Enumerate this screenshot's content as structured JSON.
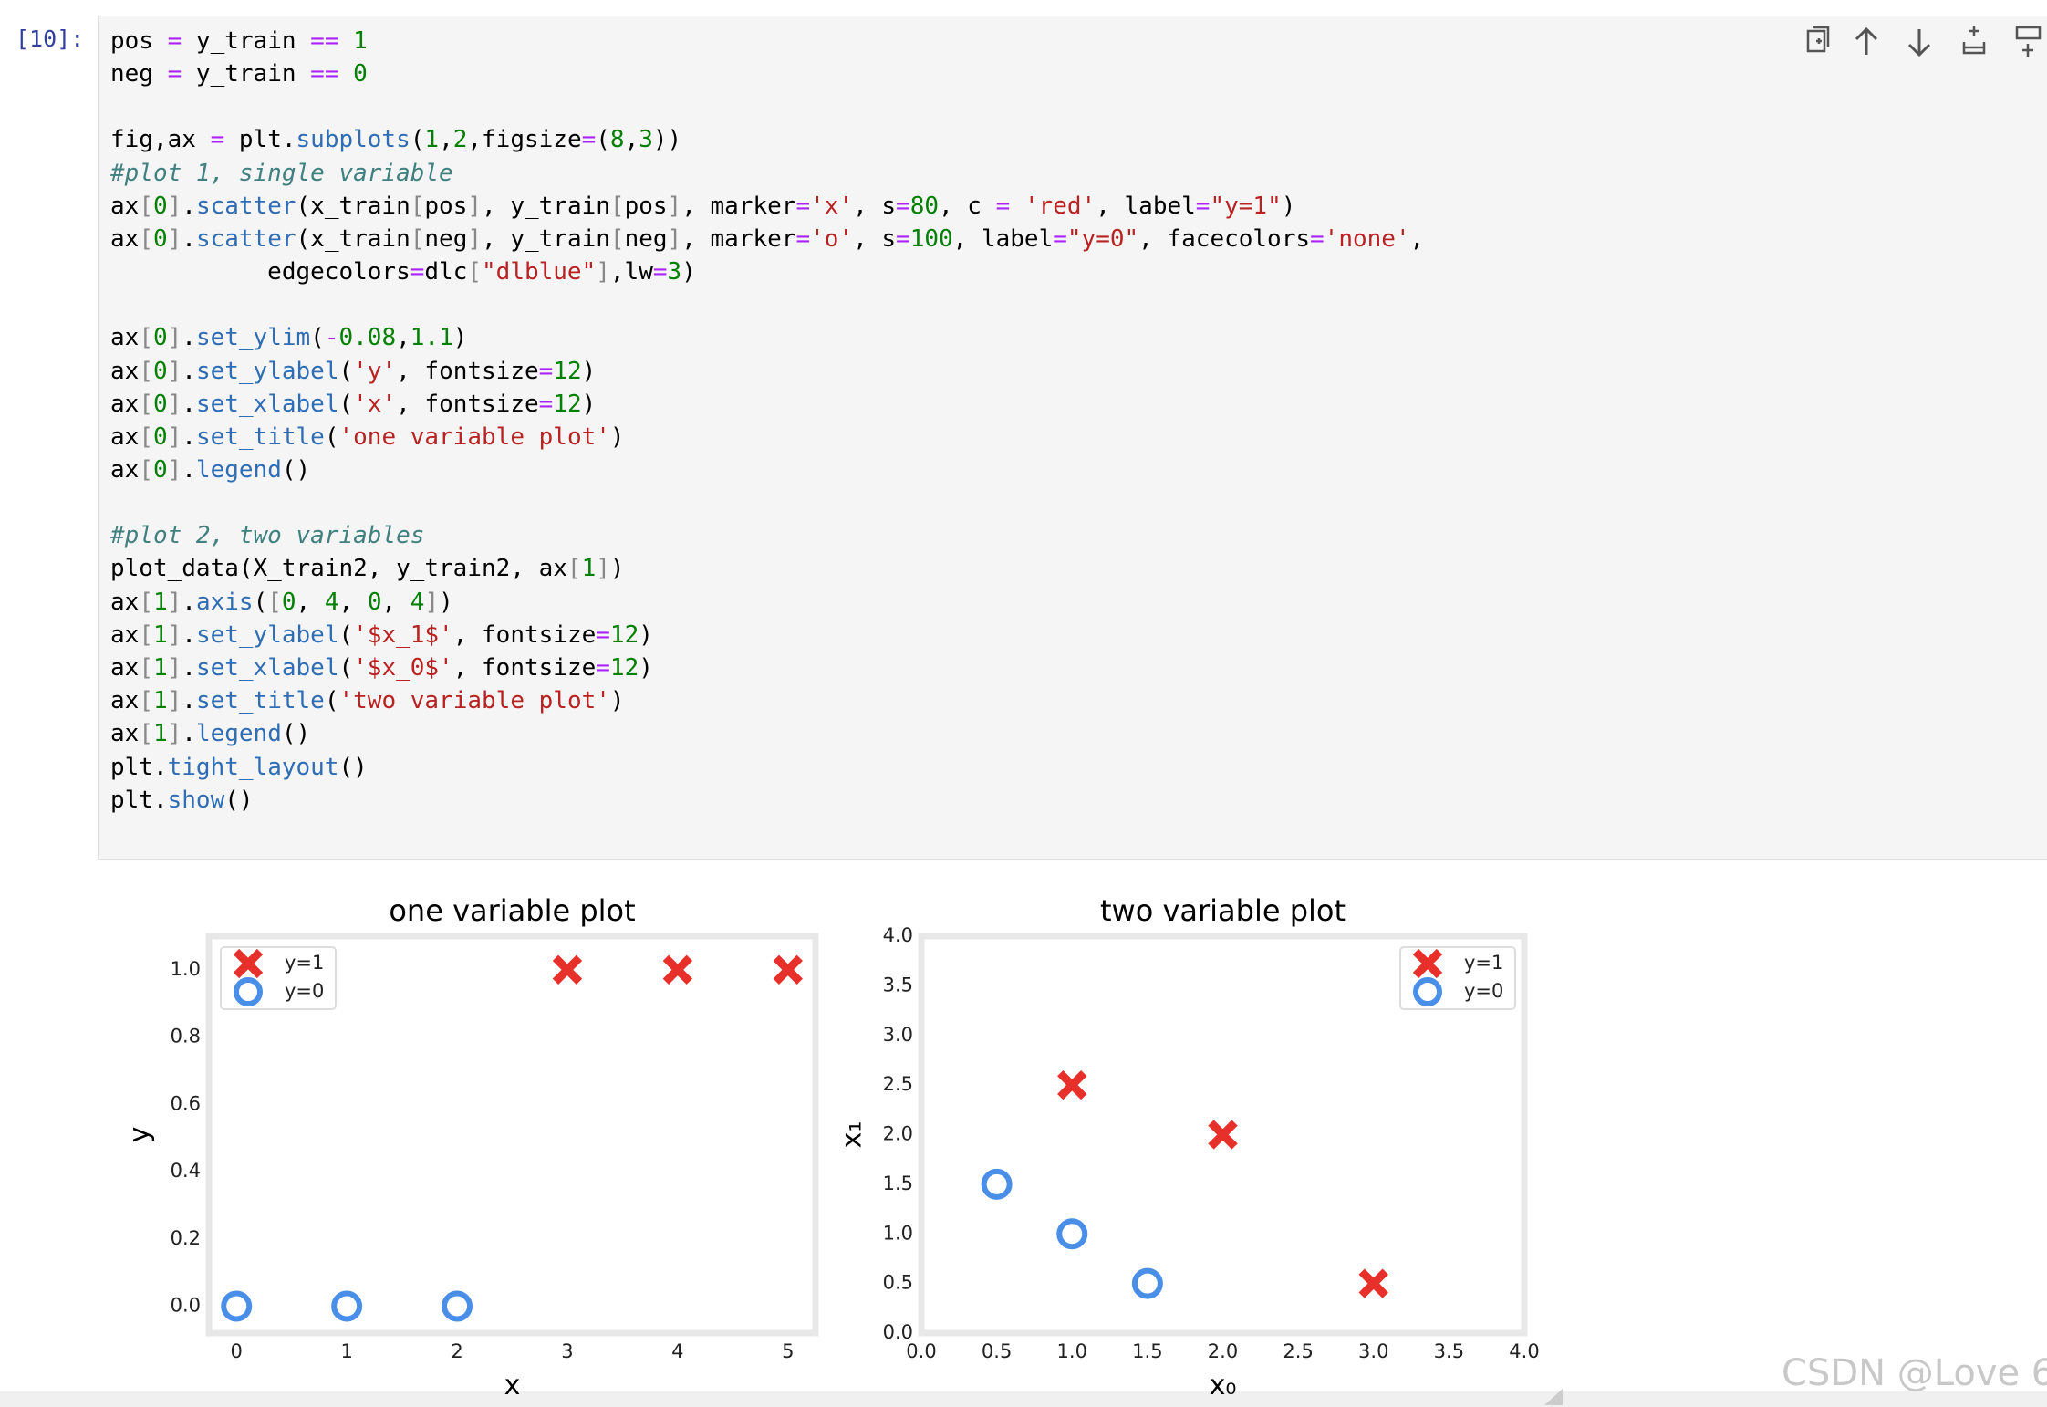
{
  "cell": {
    "prompt": "[10]:",
    "code_blocks": [
      [
        "pos = y_train == 1",
        "neg = y_train == 0"
      ],
      [
        "fig,ax = plt.subplots(1,2,figsize=(8,3))",
        "#plot 1, single variable",
        "ax[0].scatter(x_train[pos], y_train[pos], marker='x', s=80, c = 'red', label=\"y=1\")",
        "ax[0].scatter(x_train[neg], y_train[neg], marker='o', s=100, label=\"y=0\", facecolors='none',",
        "           edgecolors=dlc[\"dlblue\"],lw=3)"
      ],
      [
        "ax[0].set_ylim(-0.08,1.1)",
        "ax[0].set_ylabel('y', fontsize=12)",
        "ax[0].set_xlabel('x', fontsize=12)",
        "ax[0].set_title('one variable plot')",
        "ax[0].legend()"
      ],
      [
        "#plot 2, two variables",
        "plot_data(X_train2, y_train2, ax[1])",
        "ax[1].axis([0, 4, 0, 4])",
        "ax[1].set_ylabel('$x_1$', fontsize=12)",
        "ax[1].set_xlabel('$x_0$', fontsize=12)",
        "ax[1].set_title('two variable plot')",
        "ax[1].legend()",
        "plt.tight_layout()",
        "plt.show()"
      ]
    ]
  },
  "chart_data": [
    {
      "type": "scatter",
      "title": "one variable plot",
      "xlabel": "x",
      "ylabel": "y",
      "xlim": [
        -0.25,
        5.25
      ],
      "xticks": [
        0,
        1,
        2,
        3,
        4,
        5
      ],
      "ylim": [
        -0.08,
        1.1
      ],
      "yticks": [
        {
          "value": 0,
          "label": "0.0"
        },
        {
          "value": 0.2,
          "label": "0.2"
        },
        {
          "value": 0.4,
          "label": "0.4"
        },
        {
          "value": 0.6,
          "label": "0.6"
        },
        {
          "value": 0.8,
          "label": "0.8"
        },
        {
          "value": 1,
          "label": "1.0"
        }
      ],
      "legend": "upper left",
      "series": [
        {
          "name": "y=1",
          "marker": "x",
          "color": "#e8302a",
          "x": [
            3,
            4,
            5
          ],
          "values": [
            1,
            1,
            1
          ]
        },
        {
          "name": "y=0",
          "marker": "o",
          "color": "#4a8fe7",
          "x": [
            0,
            1,
            2
          ],
          "values": [
            0,
            0,
            0
          ]
        }
      ]
    },
    {
      "type": "scatter",
      "title": "two variable plot",
      "xlabel": "x₀",
      "ylabel": "x₁",
      "xlim": [
        0,
        4
      ],
      "xticks": [
        {
          "value": 0,
          "label": "0.0"
        },
        {
          "value": 0.5,
          "label": "0.5"
        },
        {
          "value": 1,
          "label": "1.0"
        },
        {
          "value": 1.5,
          "label": "1.5"
        },
        {
          "value": 2,
          "label": "2.0"
        },
        {
          "value": 2.5,
          "label": "2.5"
        },
        {
          "value": 3,
          "label": "3.0"
        },
        {
          "value": 3.5,
          "label": "3.5"
        },
        {
          "value": 4,
          "label": "4.0"
        }
      ],
      "ylim": [
        0,
        4
      ],
      "yticks": [
        {
          "value": 0,
          "label": "0.0"
        },
        {
          "value": 0.5,
          "label": "0.5"
        },
        {
          "value": 1,
          "label": "1.0"
        },
        {
          "value": 1.5,
          "label": "1.5"
        },
        {
          "value": 2,
          "label": "2.0"
        },
        {
          "value": 2.5,
          "label": "2.5"
        },
        {
          "value": 3,
          "label": "3.0"
        },
        {
          "value": 3.5,
          "label": "3.5"
        },
        {
          "value": 4,
          "label": "4.0"
        }
      ],
      "legend": "upper right",
      "series": [
        {
          "name": "y=1",
          "marker": "x",
          "color": "#e8302a",
          "x": [
            1,
            2,
            3
          ],
          "values": [
            2.5,
            2,
            0.5
          ]
        },
        {
          "name": "y=0",
          "marker": "o",
          "color": "#4a8fe7",
          "x": [
            0.5,
            1,
            1.5
          ],
          "values": [
            1.5,
            1,
            0.5
          ]
        }
      ]
    }
  ],
  "watermark": "CSDN @Love 6"
}
